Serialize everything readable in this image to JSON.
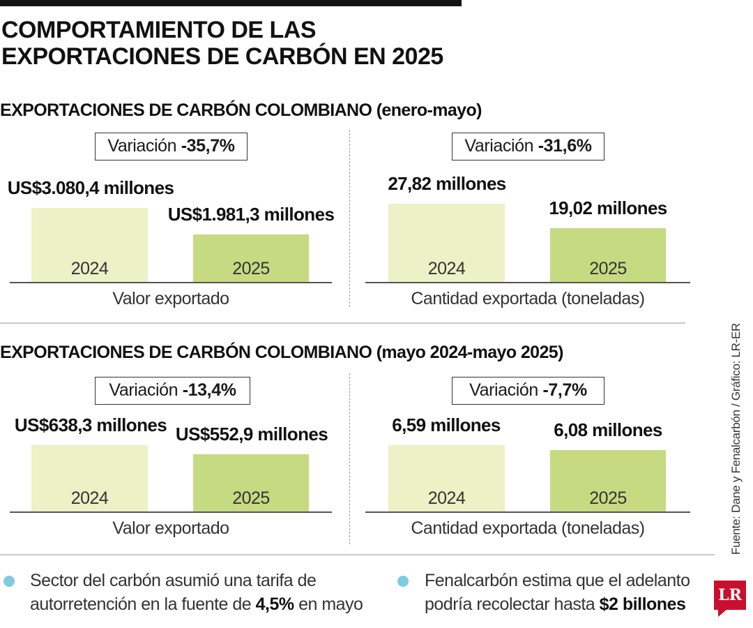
{
  "title_line1": "COMPORTAMIENTO DE LAS",
  "title_line2": "EXPORTACIONES DE CARBÓN EN 2025",
  "source": "Fuente: Dane y Fenalcarbón / Gráfico: LR-ER",
  "logo": "LR",
  "colors": {
    "bar_2024": "#ecf1c6",
    "bar_2025": "#c6da82",
    "bullet": "#7fcbe0",
    "logo": "#c8102e"
  },
  "sections": [
    {
      "title": "EXPORTACIONES DE CARBÓN COLOMBIANO",
      "period": "(enero-mayo)",
      "panels": [
        {
          "variation_label": "Variación",
          "variation_value": "-35,7%",
          "axis_label": "Valor exportado",
          "bars": [
            {
              "year": "2024",
              "label": "US$3.080,4 millones"
            },
            {
              "year": "2025",
              "label": "US$1.981,3 millones"
            }
          ]
        },
        {
          "variation_label": "Variación",
          "variation_value": "-31,6%",
          "axis_label": "Cantidad exportada (toneladas)",
          "bars": [
            {
              "year": "2024",
              "label": "27,82 millones"
            },
            {
              "year": "2025",
              "label": "19,02 millones"
            }
          ]
        }
      ]
    },
    {
      "title": "EXPORTACIONES DE CARBÓN COLOMBIANO",
      "period": "(mayo 2024-mayo 2025)",
      "panels": [
        {
          "variation_label": "Variación",
          "variation_value": "-13,4%",
          "axis_label": "Valor exportado",
          "bars": [
            {
              "year": "2024",
              "label": "US$638,3 millones"
            },
            {
              "year": "2025",
              "label": "US$552,9 millones"
            }
          ]
        },
        {
          "variation_label": "Variación",
          "variation_value": "-7,7%",
          "axis_label": "Cantidad exportada (toneladas)",
          "bars": [
            {
              "year": "2024",
              "label": "6,59 millones"
            },
            {
              "year": "2025",
              "label": "6,08 millones"
            }
          ]
        }
      ]
    }
  ],
  "notes": [
    {
      "text_before": "Sector del carbón asumió una tarifa de autorretención en la fuente de ",
      "bold": "4,5%",
      "text_after": " en mayo"
    },
    {
      "text_before": "Fenalcarbón estima que el adelanto podría recolectar hasta ",
      "bold": "$2 billones",
      "text_after": ""
    }
  ],
  "chart_data": [
    {
      "type": "bar",
      "title": "",
      "xlabel": "Valor exportado",
      "ylabel": "",
      "categories": [
        "2024",
        "2025"
      ],
      "values": [
        3080.4,
        1981.3
      ],
      "unit": "US$ millones",
      "variation": "-35,7%",
      "period": "(enero-mayo)",
      "ylim": [
        0,
        3080.4
      ]
    },
    {
      "type": "bar",
      "title": "",
      "xlabel": "Cantidad exportada (toneladas)",
      "ylabel": "",
      "categories": [
        "2024",
        "2025"
      ],
      "values": [
        27.82,
        19.02
      ],
      "unit": "millones",
      "variation": "-31,6%",
      "period": "(enero-mayo)",
      "ylim": [
        0,
        27.82
      ]
    },
    {
      "type": "bar",
      "title": "",
      "xlabel": "Valor exportado",
      "ylabel": "",
      "categories": [
        "2024",
        "2025"
      ],
      "values": [
        638.3,
        552.9
      ],
      "unit": "US$ millones",
      "variation": "-13,4%",
      "period": "(mayo 2024-mayo 2025)",
      "ylim": [
        0,
        638.3
      ]
    },
    {
      "type": "bar",
      "title": "",
      "xlabel": "Cantidad exportada (toneladas)",
      "ylabel": "",
      "categories": [
        "2024",
        "2025"
      ],
      "values": [
        6.59,
        6.08
      ],
      "unit": "millones",
      "variation": "-7,7%",
      "period": "(mayo 2024-mayo 2025)",
      "ylim": [
        0,
        6.59
      ]
    }
  ]
}
